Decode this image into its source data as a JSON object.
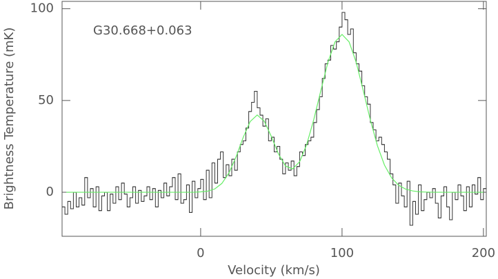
{
  "chart_data": {
    "type": "line",
    "annotation": "G30.668+0.063",
    "xlabel": "Velocity (km/s)",
    "ylabel": "Brightness Temperature (mK)",
    "xlim": [
      -98,
      202
    ],
    "ylim": [
      -24,
      104
    ],
    "xticks": [
      0,
      100,
      200
    ],
    "yticks": [
      0,
      50,
      100
    ],
    "series": [
      {
        "color": "#333333",
        "step": true,
        "x": [
          -97,
          -95,
          -93,
          -91,
          -89,
          -87,
          -85,
          -83,
          -81,
          -79,
          -77,
          -75,
          -73,
          -71,
          -69,
          -67,
          -65,
          -63,
          -61,
          -59,
          -57,
          -55,
          -53,
          -51,
          -49,
          -47,
          -45,
          -43,
          -41,
          -39,
          -37,
          -35,
          -33,
          -31,
          -29,
          -27,
          -25,
          -23,
          -21,
          -19,
          -17,
          -15,
          -13,
          -11,
          -9,
          -7,
          -5,
          -3,
          -1,
          1,
          3,
          5,
          7,
          9,
          11,
          13,
          15,
          17,
          19,
          21,
          23,
          25,
          27,
          29,
          31,
          33,
          35,
          37,
          39,
          41,
          43,
          45,
          47,
          49,
          51,
          53,
          55,
          57,
          59,
          61,
          63,
          65,
          67,
          69,
          71,
          73,
          75,
          77,
          79,
          81,
          83,
          85,
          87,
          89,
          91,
          93,
          95,
          97,
          99,
          101,
          103,
          105,
          107,
          109,
          111,
          113,
          115,
          117,
          119,
          121,
          123,
          125,
          127,
          129,
          131,
          133,
          135,
          137,
          139,
          141,
          143,
          145,
          147,
          149,
          151,
          153,
          155,
          157,
          159,
          161,
          163,
          165,
          167,
          169,
          171,
          173,
          175,
          177,
          179,
          181,
          183,
          185,
          187,
          189,
          191,
          193,
          195,
          197,
          199,
          201
        ],
        "values": [
          -8,
          -12,
          -5,
          -9,
          0,
          -8,
          -3,
          -7,
          8,
          -3,
          2,
          -8,
          3,
          -10,
          -2,
          0,
          -10,
          -1,
          -6,
          3,
          -4,
          5,
          -1,
          -8,
          -3,
          3,
          -6,
          1,
          -5,
          -2,
          3,
          -4,
          2,
          -8,
          1,
          -3,
          5,
          -2,
          3,
          8,
          -4,
          10,
          -6,
          -4,
          4,
          -11,
          6,
          -3,
          2,
          7,
          -4,
          12,
          -3,
          16,
          5,
          18,
          22,
          8,
          15,
          9,
          18,
          12,
          22,
          26,
          28,
          35,
          44,
          49,
          55,
          46,
          42,
          36,
          40,
          28,
          30,
          22,
          25,
          18,
          10,
          16,
          12,
          17,
          9,
          14,
          22,
          20,
          26,
          28,
          30,
          38,
          45,
          52,
          62,
          70,
          72,
          80,
          78,
          82,
          90,
          98,
          94,
          86,
          89,
          76,
          70,
          66,
          58,
          52,
          48,
          38,
          34,
          28,
          30,
          26,
          22,
          18,
          10,
          4,
          -6,
          5,
          -2,
          -8,
          6,
          -18,
          -5,
          -12,
          4,
          -10,
          -4,
          0,
          -3,
          2,
          -6,
          -14,
          -2,
          3,
          -8,
          -15,
          0,
          -4,
          4,
          -2,
          -10,
          3,
          -8,
          4,
          -1,
          8,
          -4,
          2
        ]
      },
      {
        "color": "#66ee66",
        "step": false,
        "x": [
          -95,
          -90,
          -85,
          -80,
          -75,
          -70,
          -65,
          -60,
          -55,
          -50,
          -45,
          -40,
          -35,
          -30,
          -25,
          -20,
          -15,
          -10,
          -5,
          0,
          5,
          10,
          15,
          20,
          25,
          30,
          35,
          40,
          45,
          50,
          55,
          60,
          65,
          70,
          75,
          80,
          85,
          90,
          95,
          100,
          105,
          110,
          115,
          120,
          125,
          130,
          135,
          140,
          145,
          150,
          155,
          160,
          165,
          170,
          175,
          180,
          185,
          190,
          195,
          200
        ],
        "values": [
          0,
          0,
          0,
          0,
          0,
          0,
          0,
          0,
          0,
          0,
          0,
          0,
          0,
          0,
          0,
          0,
          0,
          0,
          0,
          0.2,
          0.6,
          1.8,
          4.8,
          10.5,
          19.2,
          29.7,
          38.5,
          42.1,
          38.7,
          30.4,
          20.9,
          14.3,
          12.7,
          16.6,
          26.0,
          39.6,
          55.4,
          70.8,
          81.9,
          86,
          81.9,
          70.8,
          55.4,
          39.4,
          25.4,
          14.8,
          7.9,
          3.8,
          1.7,
          0.7,
          0.2,
          0.1,
          0,
          0,
          0,
          0,
          0,
          0,
          0,
          0
        ]
      }
    ]
  }
}
